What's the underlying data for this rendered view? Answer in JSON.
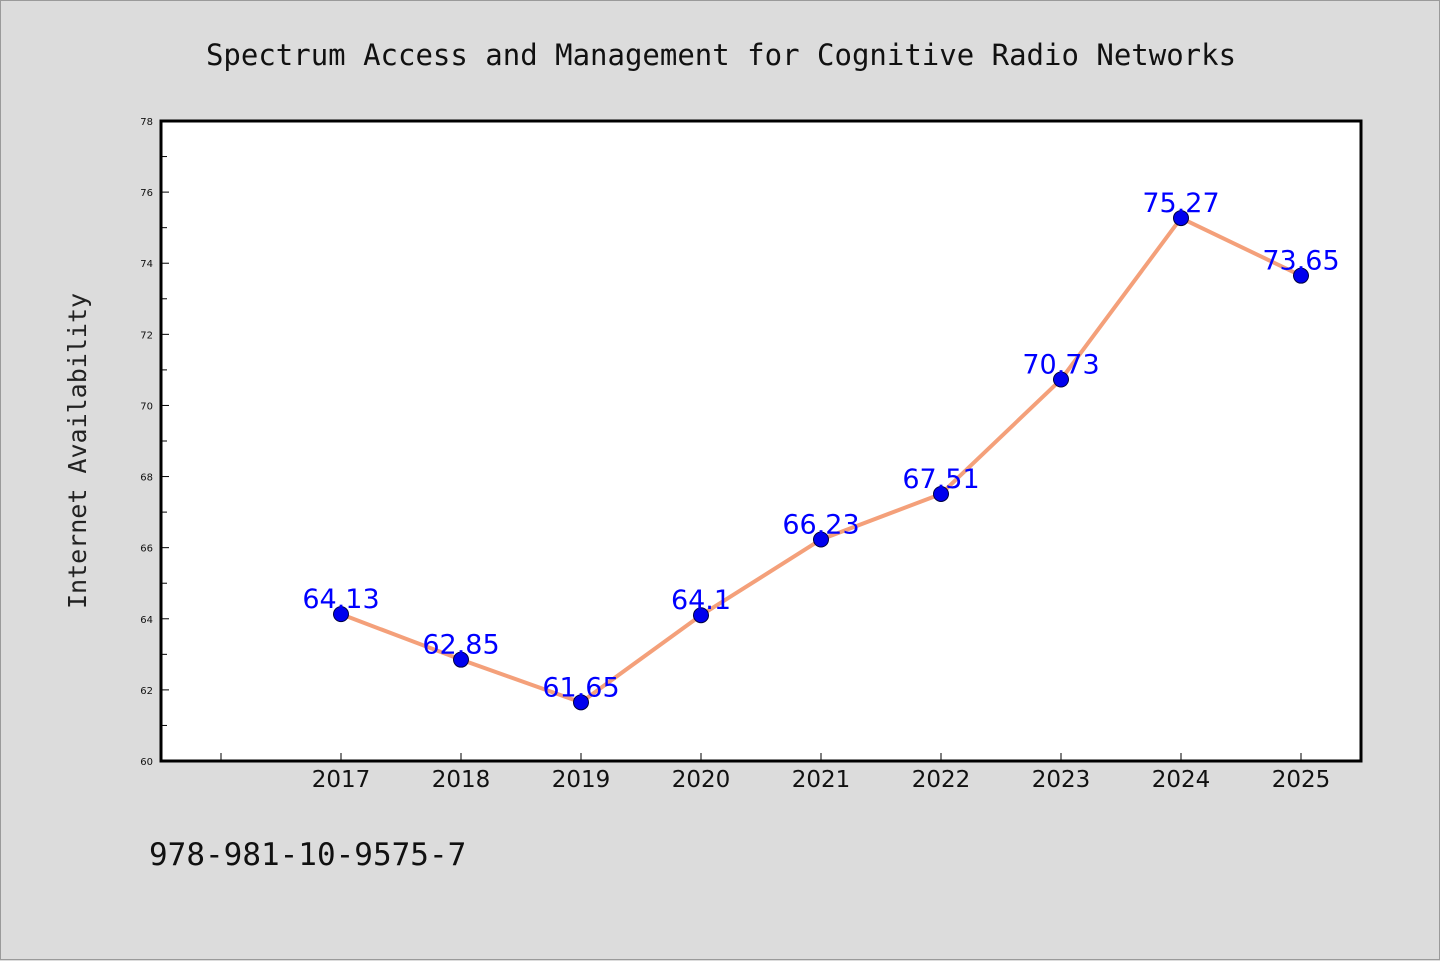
{
  "chart_data": {
    "type": "line",
    "title": "Spectrum Access and Management for Cognitive Radio Networks",
    "xlabel": "",
    "ylabel": "Internet Availability",
    "x": [
      "2017",
      "2018",
      "2019",
      "2020",
      "2021",
      "2022",
      "2023",
      "2024",
      "2025"
    ],
    "series": [
      {
        "values": [
          64.13,
          62.85,
          61.65,
          64.1,
          66.23,
          67.51,
          70.73,
          75.27,
          73.65
        ],
        "labels": [
          "64.13",
          "62.85",
          "61.65",
          "64.1",
          "66.23",
          "67.51",
          "70.73",
          "75.27",
          "73.65"
        ],
        "line_color": "#f4a07a",
        "marker_color": "#0000ee",
        "label_color": "#0000ff"
      }
    ],
    "ylim": [
      60,
      78
    ],
    "yticks": [
      60,
      62,
      64,
      66,
      68,
      70,
      72,
      74,
      76,
      78
    ],
    "grid": false,
    "legend": "none"
  },
  "footer": {
    "isbn": "978-981-10-9575-7"
  },
  "colors": {
    "background": "#dcdcdc",
    "plot_background": "#ffffff",
    "axis": "#000000"
  }
}
